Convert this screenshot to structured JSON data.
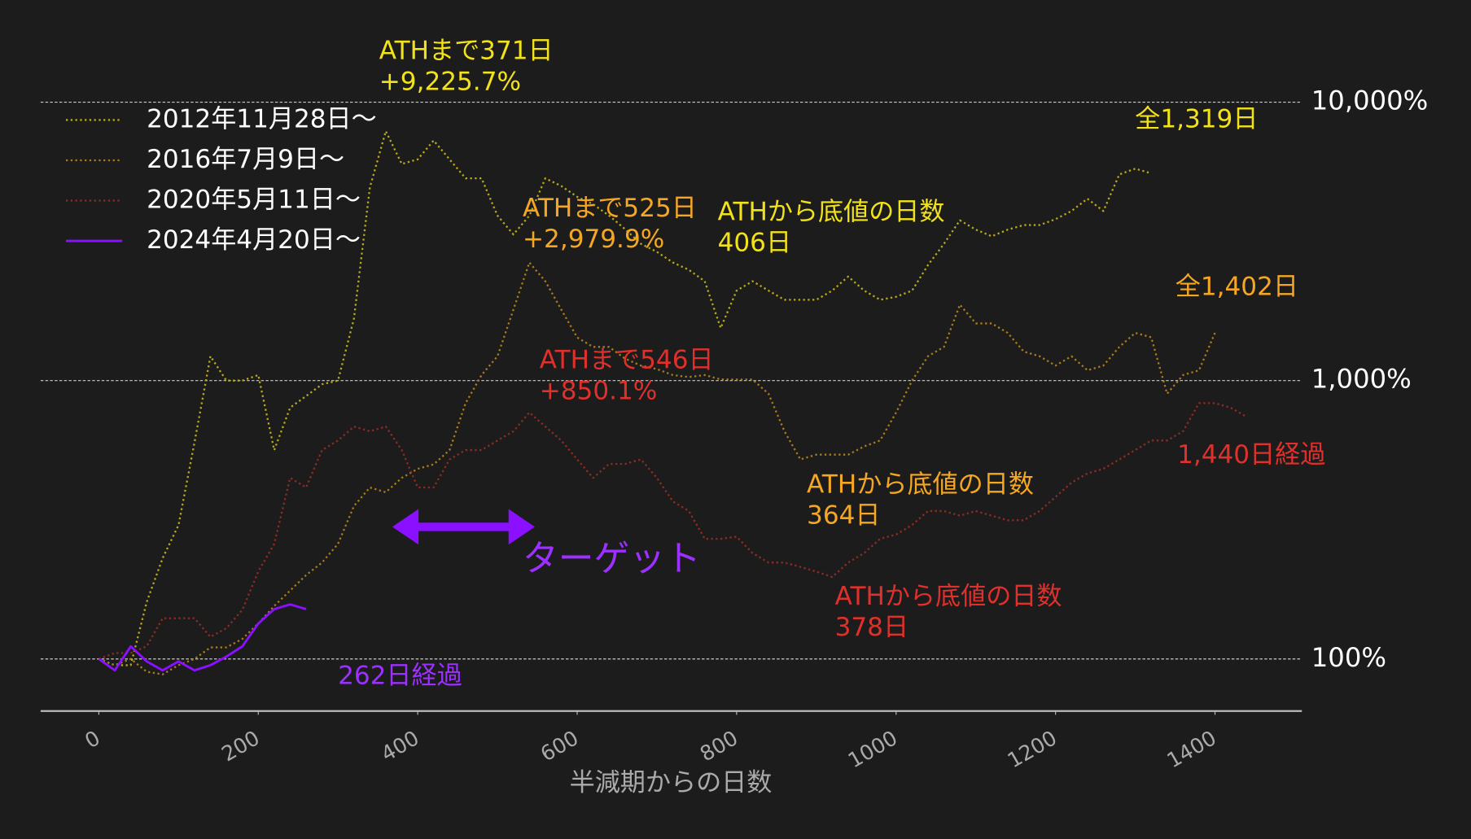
{
  "chart_data": {
    "type": "line",
    "xlabel": "半減期からの日数",
    "log_scale": true,
    "grid": true,
    "legend": "upper left",
    "xlim": [
      -73,
      1509
    ],
    "ylim": [
      65,
      18000
    ],
    "xticks": [
      0,
      200,
      400,
      600,
      800,
      1000,
      1200,
      1400
    ],
    "yticks": [
      {
        "value": 100,
        "label": "100%"
      },
      {
        "value": 1000,
        "label": "1,000%"
      },
      {
        "value": 10000,
        "label": "10,000%"
      }
    ],
    "x": [
      0,
      20,
      40,
      60,
      80,
      100,
      120,
      140,
      160,
      180,
      200,
      220,
      240,
      260,
      280,
      300,
      320,
      340,
      360,
      380,
      400,
      420,
      440,
      460,
      480,
      500,
      520,
      540,
      560,
      580,
      600,
      620,
      640,
      660,
      680,
      700,
      720,
      740,
      760,
      780,
      800,
      820,
      840,
      860,
      880,
      900,
      920,
      940,
      960,
      980,
      1000,
      1020,
      1040,
      1060,
      1080,
      1100,
      1120,
      1140,
      1160,
      1180,
      1200,
      1220,
      1240,
      1260,
      1280,
      1300,
      1320,
      1340,
      1360,
      1380,
      1400,
      1420,
      1440
    ],
    "series": [
      {
        "name": "2012年11月28日〜",
        "color": "#b8a81c",
        "dashed": true,
        "values": [
          100,
          95,
          95,
          160,
          230,
          303,
          600,
          1223,
          1000,
          1000,
          1047,
          563,
          800,
          880,
          970,
          1000,
          1668,
          4940,
          7870,
          6000,
          6230,
          7280,
          6230,
          5330,
          5330,
          3915,
          3350,
          3915,
          5330,
          5000,
          4570,
          4300,
          3915,
          3500,
          3100,
          2900,
          2655,
          2500,
          2275,
          1545,
          2105,
          2275,
          2105,
          1950,
          1950,
          1950,
          2105,
          2365,
          2105,
          1950,
          2000,
          2105,
          2600,
          3100,
          3765,
          3485,
          3300,
          3485,
          3620,
          3620,
          3800,
          4065,
          4500,
          4065,
          5500,
          5770,
          5550,
          null,
          null,
          null,
          null,
          null,
          null
        ]
      },
      {
        "name": "2016年7月9日〜",
        "color": "#a87c1a",
        "dashed": true,
        "values": [
          100,
          95,
          100,
          90,
          88,
          95,
          100,
          110,
          110,
          118,
          134,
          155,
          176,
          200,
          222,
          259,
          354,
          413,
          397,
          447,
          482,
          500,
          563,
          830,
          1047,
          1223,
          1800,
          2655,
          2275,
          1800,
          1428,
          1321,
          1321,
          1200,
          1132,
          1100,
          1047,
          1030,
          1047,
          1010,
          1008,
          1008,
          897,
          658,
          521,
          542,
          542,
          542,
          580,
          609,
          768,
          1000,
          1223,
          1321,
          1874,
          1604,
          1604,
          1484,
          1271,
          1223,
          1132,
          1223,
          1089,
          1132,
          1321,
          1484,
          1430,
          897,
          1047,
          1089,
          1484,
          null,
          null
        ]
      },
      {
        "name": "2020年5月11日〜",
        "color": "#8e2c22",
        "dashed": true,
        "values": [
          100,
          105,
          105,
          111,
          140,
          140,
          140,
          120,
          129,
          150,
          206,
          259,
          447,
          413,
          563,
          609,
          684,
          658,
          684,
          563,
          413,
          413,
          521,
          563,
          563,
          609,
          658,
          768,
          684,
          609,
          521,
          447,
          502,
          502,
          521,
          447,
          368,
          340,
          270,
          270,
          275,
          240,
          222,
          222,
          214,
          206,
          197,
          222,
          240,
          270,
          280,
          303,
          340,
          340,
          327,
          340,
          327,
          315,
          315,
          340,
          382,
          430,
          464,
          482,
          521,
          563,
          609,
          609,
          658,
          830,
          830,
          798,
          740
        ]
      },
      {
        "name": "2024年4月20日〜",
        "color": "#8a10ff",
        "dashed": false,
        "values": [
          100,
          91,
          111,
          98,
          91,
          98,
          91,
          95,
          102,
          111,
          134,
          151,
          157,
          151,
          null,
          null,
          null,
          null,
          null,
          null,
          null,
          null,
          null,
          null,
          null,
          null,
          null,
          null,
          null,
          null,
          null,
          null,
          null,
          null,
          null,
          null,
          null,
          null,
          null,
          null,
          null,
          null,
          null,
          null,
          null,
          null,
          null,
          null,
          null,
          null,
          null,
          null,
          null,
          null,
          null,
          null,
          null,
          null,
          null,
          null,
          null,
          null,
          null,
          null,
          null,
          null,
          null,
          null,
          null,
          null,
          null,
          null,
          null
        ]
      }
    ],
    "annotations": [
      {
        "lines": [
          "ATHまで371日",
          "+9,225.7%"
        ],
        "color": "#f2e21b"
      },
      {
        "lines": [
          "全1,319日"
        ],
        "color": "#f2e21b"
      },
      {
        "lines": [
          "ATHまで525日",
          "+2,979.9%"
        ],
        "color": "#f5a623"
      },
      {
        "lines": [
          "ATHから底値の日数",
          "406日"
        ],
        "color": "#f2e21b"
      },
      {
        "lines": [
          "全1,402日"
        ],
        "color": "#f5a623"
      },
      {
        "lines": [
          "ATHまで546日",
          "+850.1%"
        ],
        "color": "#e0302c"
      },
      {
        "lines": [
          "ATHから底値の日数",
          "364日"
        ],
        "color": "#f5a623"
      },
      {
        "lines": [
          "ATHから底値の日数",
          "378日"
        ],
        "color": "#e0302c"
      },
      {
        "lines": [
          "1,440日経過"
        ],
        "color": "#e0302c"
      },
      {
        "lines": [
          "262日経過"
        ],
        "color": "#9b30ff"
      },
      {
        "lines": [
          "ターゲット"
        ],
        "color": "#9b30ff"
      }
    ]
  }
}
